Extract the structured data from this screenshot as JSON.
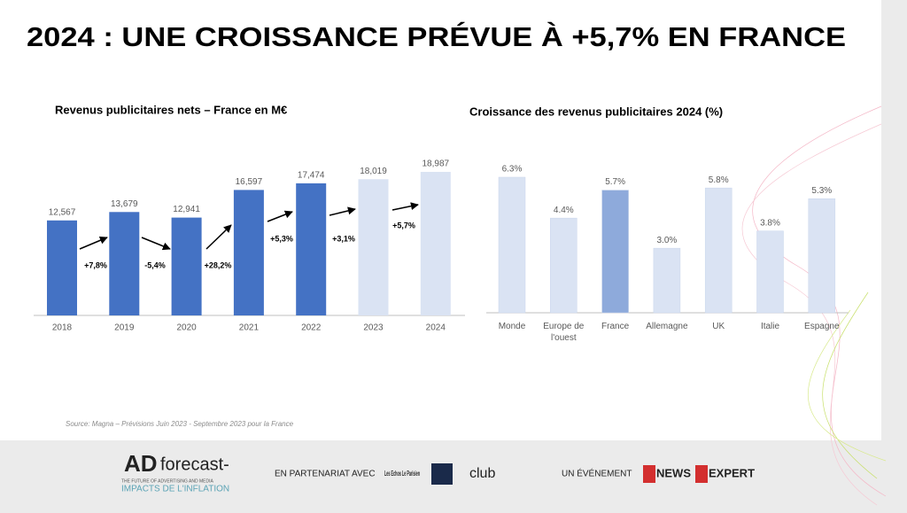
{
  "title": "2024 : UNE CROISSANCE PRÉVUE À +5,7% EN FRANCE",
  "chart_data": [
    {
      "type": "bar",
      "title": "Revenus publicitaires nets –  France en M€",
      "categories": [
        "2018",
        "2019",
        "2020",
        "2021",
        "2022",
        "2023",
        "2024"
      ],
      "values": [
        12567,
        13679,
        12941,
        16597,
        17474,
        18019,
        18987
      ],
      "value_labels": [
        "12,567",
        "13,679",
        "12,941",
        "16,597",
        "17,474",
        "18,019",
        "18,987"
      ],
      "colors": [
        "#4472c4",
        "#4472c4",
        "#4472c4",
        "#4472c4",
        "#4472c4",
        "#dae3f3",
        "#dae3f3"
      ],
      "annotations": [
        "+7,8%",
        "-5,4%",
        "+28,2%",
        "+5,3%",
        "+3,1%",
        "+5,7%"
      ]
    },
    {
      "type": "bar",
      "title": "Croissance des revenus publicitaires 2024 (%)",
      "categories": [
        "Monde",
        "Europe de l'ouest",
        "France",
        "Allemagne",
        "UK",
        "Italie",
        "Espagne"
      ],
      "values": [
        6.3,
        4.4,
        5.7,
        3.0,
        5.8,
        3.8,
        5.3
      ],
      "value_labels": [
        "6.3%",
        "4.4%",
        "5.7%",
        "3.0%",
        "5.8%",
        "3.8%",
        "5.3%"
      ],
      "colors": [
        "#dae3f3",
        "#dae3f3",
        "#8eaadb",
        "#dae3f3",
        "#dae3f3",
        "#dae3f3",
        "#dae3f3"
      ]
    }
  ],
  "source": "Source:  Magna – Prévisions Juin 2023 -  Septembre 2023 pour la France",
  "footer": {
    "brand": "forecast-",
    "brand_tagline": "THE FUTURE OF ADVERTISING AND MEDIA",
    "brand_subtitle": "IMPACTS DE L'INFLATION",
    "partner_label": "EN PARTENARIAT AVEC",
    "partner_1": "Les Echos Le Parisien",
    "partner_2": "club",
    "event_label": "UN ÉVÉNEMENT",
    "event_1": "NEWS",
    "event_2": "EXPERT"
  }
}
